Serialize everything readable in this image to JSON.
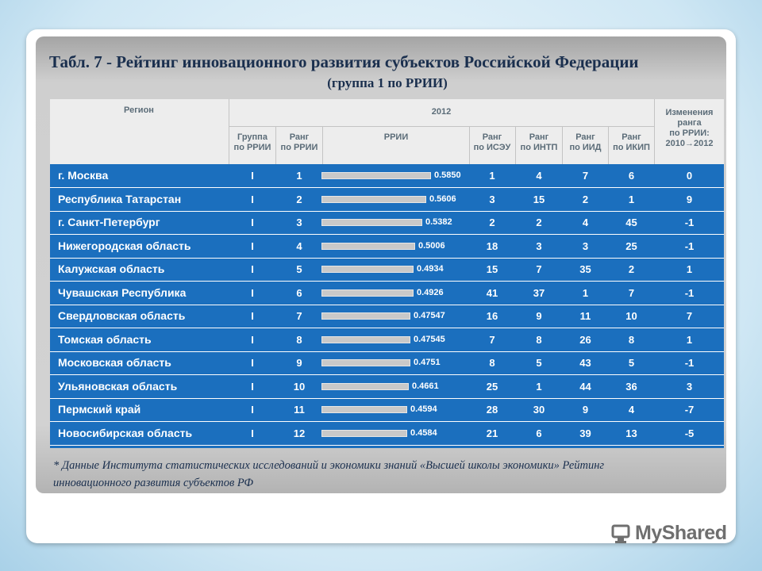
{
  "title": "Табл. 7 - Рейтинг инновационного развития субъектов Российской Федерации",
  "subtitle": "(группа 1 по РРИИ)",
  "table": {
    "headers": {
      "region": "Регион",
      "year": "2012",
      "group": "Группа\nпо РРИИ",
      "rank": "Ранг\nпо РРИИ",
      "rrii": "РРИИ",
      "isau": "Ранг\nпо ИСЭУ",
      "intp": "Ранг\nпо ИНТП",
      "iid": "Ранг\nпо ИИД",
      "ikip": "Ранг\nпо ИКИП",
      "change": "Изменения\nранга\nпо РРИИ:\n2010→2012"
    },
    "rows": [
      {
        "region": "г. Москва",
        "group": "I",
        "rank": "1",
        "rrii": "0.5850",
        "isau": "1",
        "intp": "4",
        "iid": "7",
        "ikip": "6",
        "change": "0"
      },
      {
        "region": "Республика Татарстан",
        "group": "I",
        "rank": "2",
        "rrii": "0.5606",
        "isau": "3",
        "intp": "15",
        "iid": "2",
        "ikip": "1",
        "change": "9"
      },
      {
        "region": "г. Санкт-Петербург",
        "group": "I",
        "rank": "3",
        "rrii": "0.5382",
        "isau": "2",
        "intp": "2",
        "iid": "4",
        "ikip": "45",
        "change": "-1"
      },
      {
        "region": "Нижегородская область",
        "group": "I",
        "rank": "4",
        "rrii": "0.5006",
        "isau": "18",
        "intp": "3",
        "iid": "3",
        "ikip": "25",
        "change": "-1"
      },
      {
        "region": "Калужская область",
        "group": "I",
        "rank": "5",
        "rrii": "0.4934",
        "isau": "15",
        "intp": "7",
        "iid": "35",
        "ikip": "2",
        "change": "1"
      },
      {
        "region": "Чувашская Республика",
        "group": "I",
        "rank": "6",
        "rrii": "0.4926",
        "isau": "41",
        "intp": "37",
        "iid": "1",
        "ikip": "7",
        "change": "-1"
      },
      {
        "region": "Свердловская область",
        "group": "I",
        "rank": "7",
        "rrii": "0.47547",
        "isau": "16",
        "intp": "9",
        "iid": "11",
        "ikip": "10",
        "change": "7"
      },
      {
        "region": "Томская область",
        "group": "I",
        "rank": "8",
        "rrii": "0.47545",
        "isau": "7",
        "intp": "8",
        "iid": "26",
        "ikip": "8",
        "change": "1"
      },
      {
        "region": "Московская область",
        "group": "I",
        "rank": "9",
        "rrii": "0.4751",
        "isau": "8",
        "intp": "5",
        "iid": "43",
        "ikip": "5",
        "change": "-1"
      },
      {
        "region": "Ульяновская область",
        "group": "I",
        "rank": "10",
        "rrii": "0.4661",
        "isau": "25",
        "intp": "1",
        "iid": "44",
        "ikip": "36",
        "change": "3"
      },
      {
        "region": "Пермский край",
        "group": "I",
        "rank": "11",
        "rrii": "0.4594",
        "isau": "28",
        "intp": "30",
        "iid": "9",
        "ikip": "4",
        "change": "-7"
      },
      {
        "region": "Новосибирская область",
        "group": "I",
        "rank": "12",
        "rrii": "0.4584",
        "isau": "21",
        "intp": "6",
        "iid": "39",
        "ikip": "13",
        "change": "-5"
      }
    ]
  },
  "footnote": "* Данные Института статистических исследований и экономики знаний «Высшей школы экономики» Рейтинг инновационного развития субъектов РФ",
  "watermark": {
    "text": "MyShared",
    "icon": "myshared-logo-icon"
  },
  "colors": {
    "row_blue": "#1b6fbe",
    "title": "#1a2f4e"
  }
}
